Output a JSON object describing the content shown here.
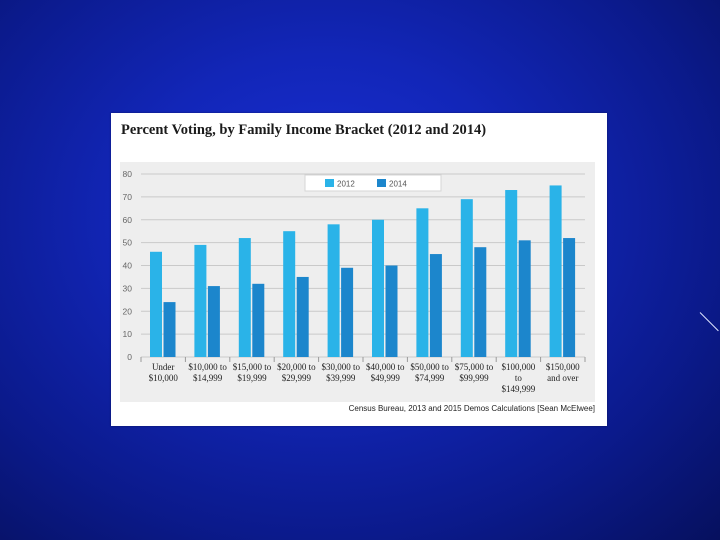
{
  "chart_data": {
    "type": "bar",
    "title": "Percent Voting, by Family Income Bracket (2012 and 2014)",
    "categories": [
      [
        "Under",
        "$10,000"
      ],
      [
        "$10,000 to",
        "$14,999"
      ],
      [
        "$15,000 to",
        "$19,999"
      ],
      [
        "$20,000 to",
        "$29,999"
      ],
      [
        "$30,000 to",
        "$39,999"
      ],
      [
        "$40,000 to",
        "$49,999"
      ],
      [
        "$50,000 to",
        "$74,999"
      ],
      [
        "$75,000 to",
        "$99,999"
      ],
      [
        "$100,000",
        "to",
        "$149,999"
      ],
      [
        "$150,000",
        "and over"
      ]
    ],
    "series": [
      {
        "name": "2012",
        "color": "#2ab3e8",
        "values": [
          46,
          49,
          52,
          55,
          58,
          60,
          65,
          69,
          73,
          75
        ]
      },
      {
        "name": "2014",
        "color": "#1c86cc",
        "values": [
          24,
          31,
          32,
          35,
          39,
          40,
          45,
          48,
          51,
          52
        ]
      }
    ],
    "ylim": [
      0,
      80
    ],
    "yticks": [
      0,
      10,
      20,
      30,
      40,
      50,
      60,
      70,
      80
    ],
    "xlabel": "",
    "ylabel": "",
    "grid": true,
    "legend": "top-center",
    "source": "Census Bureau, 2013 and 2015 Demos Calculations [Sean McElwee]"
  },
  "colors": {
    "plot_bg": "#eeeeee",
    "gridline": "#c9c9c9"
  }
}
